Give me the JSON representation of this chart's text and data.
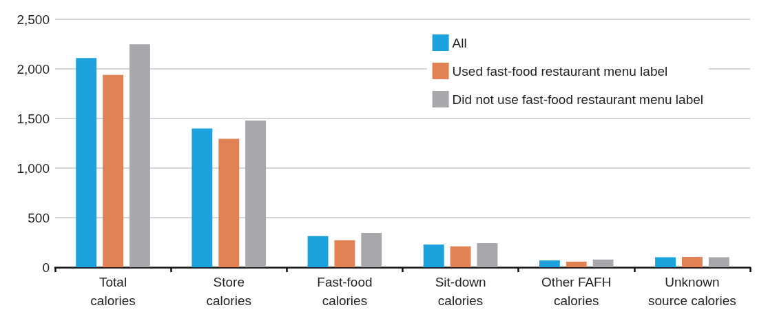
{
  "chart_data": {
    "type": "bar",
    "categories": [
      "Total\ncalories",
      "Store\ncalories",
      "Fast-food\ncalories",
      "Sit-down\ncalories",
      "Other FAFH\ncalories",
      "Unknown\nsource calories"
    ],
    "series": [
      {
        "name": "All",
        "color": "#1ba1dc",
        "values": [
          2110,
          1400,
          315,
          229,
          69,
          101
        ]
      },
      {
        "name": "Used fast-food restaurant menu label",
        "color": "#e18255",
        "values": [
          1940,
          1295,
          272,
          211,
          57,
          104
        ]
      },
      {
        "name": "Did not use fast-food restaurant menu label",
        "color": "#a7a8ac",
        "values": [
          2248,
          1480,
          347,
          243,
          78,
          101
        ]
      }
    ],
    "ylim": [
      0,
      2500
    ],
    "yticks": [
      0,
      500,
      {
        "value": 1000,
        "label": "1,000"
      },
      {
        "value": 1500,
        "label": "1,500"
      },
      {
        "value": 2000,
        "label": "2,000"
      },
      {
        "value": 2500,
        "label": "2,500"
      }
    ],
    "grid": "y",
    "legend": "top right"
  }
}
